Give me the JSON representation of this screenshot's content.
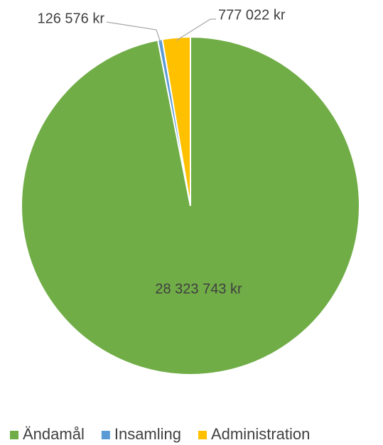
{
  "chart_data": {
    "type": "pie",
    "categories": [
      "Ändamål",
      "Insamling",
      "Administration"
    ],
    "values": [
      28323743,
      126576,
      777022
    ],
    "value_labels": [
      "28 323 743 kr",
      "126 576 kr",
      "777 022 kr"
    ],
    "colors": [
      "#70ad47",
      "#5b9bd5",
      "#ffc000"
    ],
    "legend": "bottom"
  }
}
